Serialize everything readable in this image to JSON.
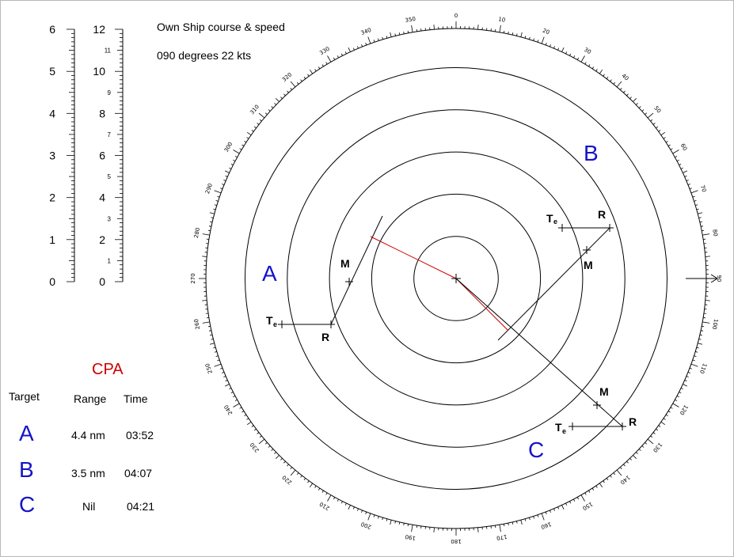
{
  "header": {
    "title": "Own Ship course & speed",
    "course_speed": "090 degrees  22 kts"
  },
  "scales": {
    "left_nm": [
      {
        "value": 0,
        "label": "0"
      },
      {
        "value": 1,
        "label": "1"
      },
      {
        "value": 2,
        "label": "2"
      },
      {
        "value": 3,
        "label": "3"
      },
      {
        "value": 4,
        "label": "4"
      },
      {
        "value": 5,
        "label": "5"
      },
      {
        "value": 6,
        "label": "6"
      }
    ],
    "right_major": [
      {
        "value": 0,
        "label": "0"
      },
      {
        "value": 2,
        "label": "2"
      },
      {
        "value": 4,
        "label": "4"
      },
      {
        "value": 6,
        "label": "6"
      },
      {
        "value": 8,
        "label": "8"
      },
      {
        "value": 10,
        "label": "10"
      },
      {
        "value": 12,
        "label": "12"
      }
    ],
    "right_minor": [
      {
        "value": 1,
        "label": "1"
      },
      {
        "value": 3,
        "label": "3"
      },
      {
        "value": 5,
        "label": "5"
      },
      {
        "value": 7,
        "label": "7"
      },
      {
        "value": 9,
        "label": "9"
      },
      {
        "value": 11,
        "label": "11"
      }
    ]
  },
  "plot": {
    "bearing_labels": [
      "0",
      "10",
      "20",
      "30",
      "40",
      "50",
      "60",
      "70",
      "80",
      "90",
      "100",
      "110",
      "120",
      "130",
      "140",
      "150",
      "160",
      "170",
      "180",
      "190",
      "200",
      "210",
      "220",
      "230",
      "240",
      "250",
      "260",
      "270",
      "280",
      "290",
      "300",
      "310",
      "320",
      "330",
      "340",
      "350"
    ],
    "range_rings": 5,
    "own_ship_heading": 90
  },
  "targets": [
    {
      "letter": "A",
      "te_label": "T",
      "te_sub": "e",
      "r_label": "R",
      "m_label": "M"
    },
    {
      "letter": "B",
      "te_label": "T",
      "te_sub": "e",
      "r_label": "R",
      "m_label": "M"
    },
    {
      "letter": "C",
      "te_label": "T",
      "te_sub": "e",
      "r_label": "R",
      "m_label": "M"
    }
  ],
  "cpa": {
    "title": "CPA",
    "headers": {
      "target": "Target",
      "range": "Range",
      "time": "Time"
    },
    "rows": [
      {
        "target": "A",
        "range": "4.4 nm",
        "time": "03:52"
      },
      {
        "target": "B",
        "range": "3.5 nm",
        "time": "04:07"
      },
      {
        "target": "C",
        "range": "Nil",
        "time": "04:21"
      }
    ]
  },
  "colors": {
    "cpa_line": "#cc0000",
    "target_letter": "#1414c8",
    "cpa_title": "#cc0000"
  }
}
